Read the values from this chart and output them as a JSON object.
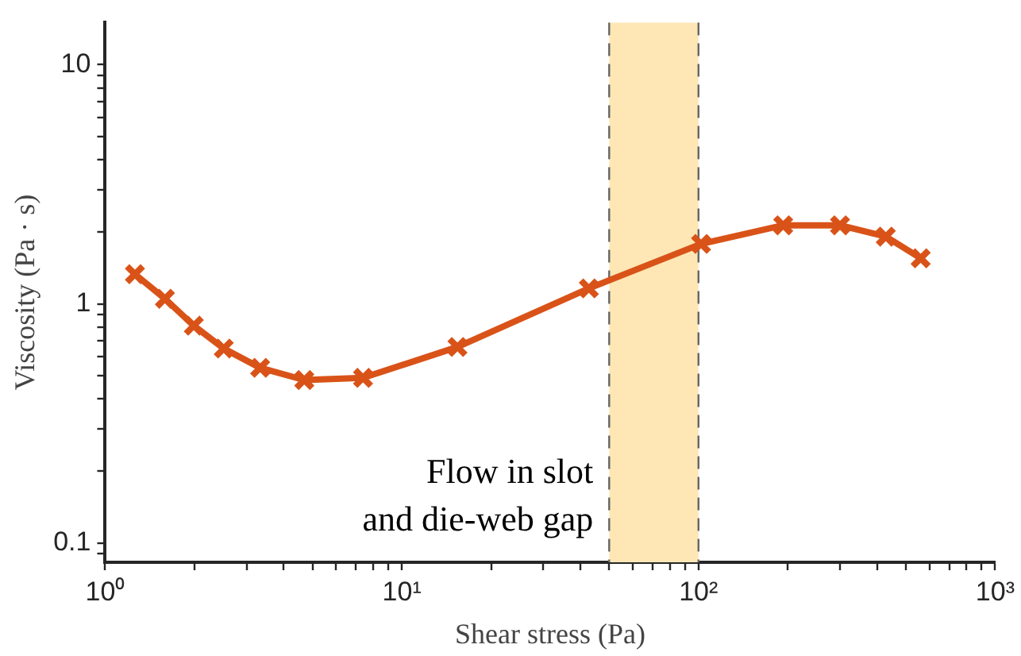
{
  "chart_data": {
    "type": "line",
    "xlabel": "Shear stress (Pa)",
    "ylabel": "Viscosity (Pa · s)",
    "log": "xy",
    "x": [
      1.26,
      1.59,
      1.99,
      2.51,
      3.33,
      4.69,
      7.4,
      15.4,
      42.7,
      102,
      193,
      300,
      428,
      561
    ],
    "series": [
      {
        "color": "#d95319",
        "values": [
          1.33,
          1.05,
          0.81,
          0.65,
          0.54,
          0.48,
          0.49,
          0.66,
          1.16,
          1.78,
          2.13,
          2.13,
          1.91,
          1.55
        ]
      }
    ],
    "marker": "cross",
    "line_style": "solid",
    "legend": false,
    "xlim": [
      1,
      1000
    ],
    "ylim": [
      0.083,
      15
    ],
    "xticks": [
      {
        "value": 1,
        "label": "10⁰"
      },
      {
        "value": 2,
        "label": null
      },
      {
        "value": 3,
        "label": null
      },
      {
        "value": 4,
        "label": null
      },
      {
        "value": 5,
        "label": null
      },
      {
        "value": 6,
        "label": null
      },
      {
        "value": 7,
        "label": null
      },
      {
        "value": 8,
        "label": null
      },
      {
        "value": 9,
        "label": null
      },
      {
        "value": 10,
        "label": "10¹"
      },
      {
        "value": 20,
        "label": null
      },
      {
        "value": 30,
        "label": null
      },
      {
        "value": 40,
        "label": null
      },
      {
        "value": 50,
        "label": null
      },
      {
        "value": 60,
        "label": null
      },
      {
        "value": 70,
        "label": null
      },
      {
        "value": 80,
        "label": null
      },
      {
        "value": 90,
        "label": null
      },
      {
        "value": 100,
        "label": "10²"
      },
      {
        "value": 200,
        "label": null
      },
      {
        "value": 300,
        "label": null
      },
      {
        "value": 400,
        "label": null
      },
      {
        "value": 500,
        "label": null
      },
      {
        "value": 600,
        "label": null
      },
      {
        "value": 700,
        "label": null
      },
      {
        "value": 800,
        "label": null
      },
      {
        "value": 900,
        "label": null
      },
      {
        "value": 1000,
        "label": "10³"
      }
    ],
    "yticks": [
      {
        "value": 0.09,
        "label": null
      },
      0.1,
      {
        "value": 0.2,
        "label": null
      },
      {
        "value": 0.3,
        "label": null
      },
      {
        "value": 0.4,
        "label": null
      },
      {
        "value": 0.5,
        "label": null
      },
      {
        "value": 0.6,
        "label": null
      },
      {
        "value": 0.7,
        "label": null
      },
      {
        "value": 0.8,
        "label": null
      },
      {
        "value": 0.9,
        "label": null
      },
      1,
      {
        "value": 2,
        "label": null
      },
      {
        "value": 3,
        "label": null
      },
      {
        "value": 4,
        "label": null
      },
      {
        "value": 5,
        "label": null
      },
      {
        "value": 6,
        "label": null
      },
      {
        "value": 7,
        "label": null
      },
      {
        "value": 8,
        "label": null
      },
      {
        "value": 9,
        "label": null
      },
      10
    ],
    "bands": [
      {
        "axis": "x",
        "from": 50,
        "to": 100,
        "color": "#fee7b5",
        "label": "Flow in slot\nand die-web gap"
      }
    ]
  }
}
